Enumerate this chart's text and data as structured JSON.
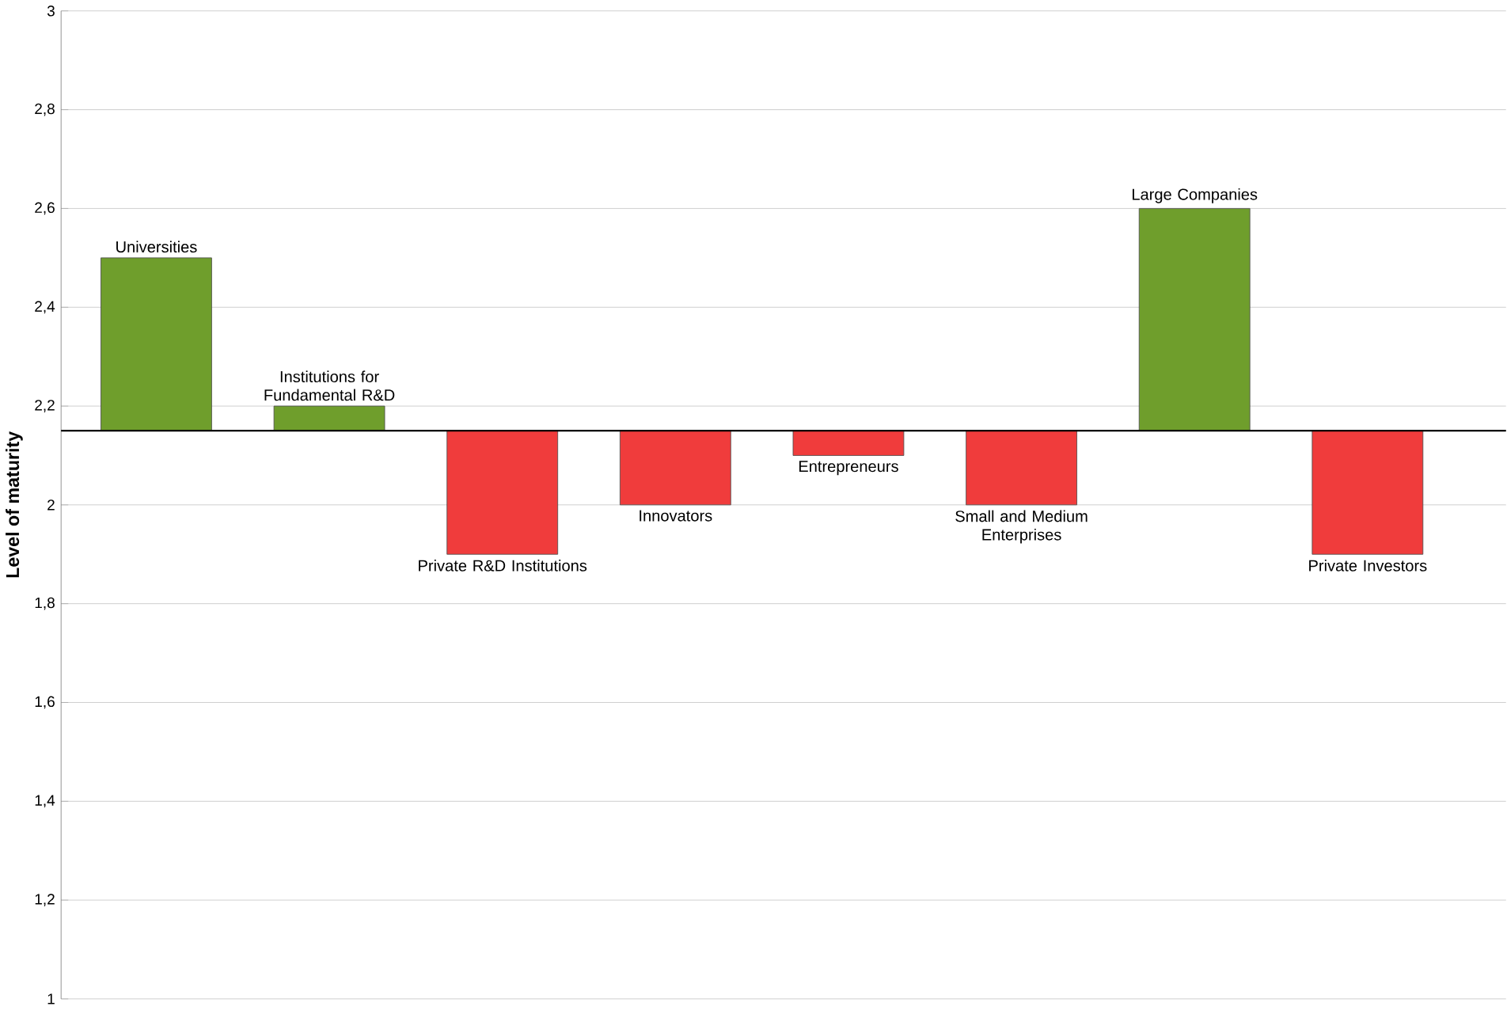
{
  "chart_data": {
    "type": "bar",
    "ylabel": "Level of maturity",
    "categories": [
      "Universities",
      "Institutions for Fundamental R&D",
      "Private R&D Institutions",
      "Innovators",
      "Entrepreneurs",
      "Small and Medium Enterprises",
      "Large Companies",
      "Private Investors"
    ],
    "base": [
      2.15,
      2.15,
      2.15,
      2.15,
      2.15,
      2.15,
      2.15,
      2.15
    ],
    "values": [
      0.35,
      0.05,
      -0.25,
      -0.15,
      -0.05,
      -0.15,
      0.45,
      -0.25
    ],
    "colors": [
      "#6f9e2c",
      "#6f9e2c",
      "#f03c3c",
      "#f03c3c",
      "#f03c3c",
      "#f03c3c",
      "#6f9e2c",
      "#f03c3c"
    ],
    "ylim": [
      1,
      3
    ],
    "yticks": [
      1,
      {
        "value": 1.2,
        "label": "1,2"
      },
      {
        "value": 1.4,
        "label": "1,4"
      },
      {
        "value": 1.6,
        "label": "1,6"
      },
      {
        "value": 1.8,
        "label": "1,8"
      },
      2,
      {
        "value": 2.2,
        "label": "2,2"
      },
      {
        "value": 2.4,
        "label": "2,4"
      },
      {
        "value": 2.6,
        "label": "2,6"
      },
      {
        "value": 2.8,
        "label": "2,8"
      },
      3
    ],
    "grid": "y",
    "ref_lines": [
      {
        "axis": "y",
        "value": 2.15,
        "color": "#000000"
      }
    ]
  }
}
